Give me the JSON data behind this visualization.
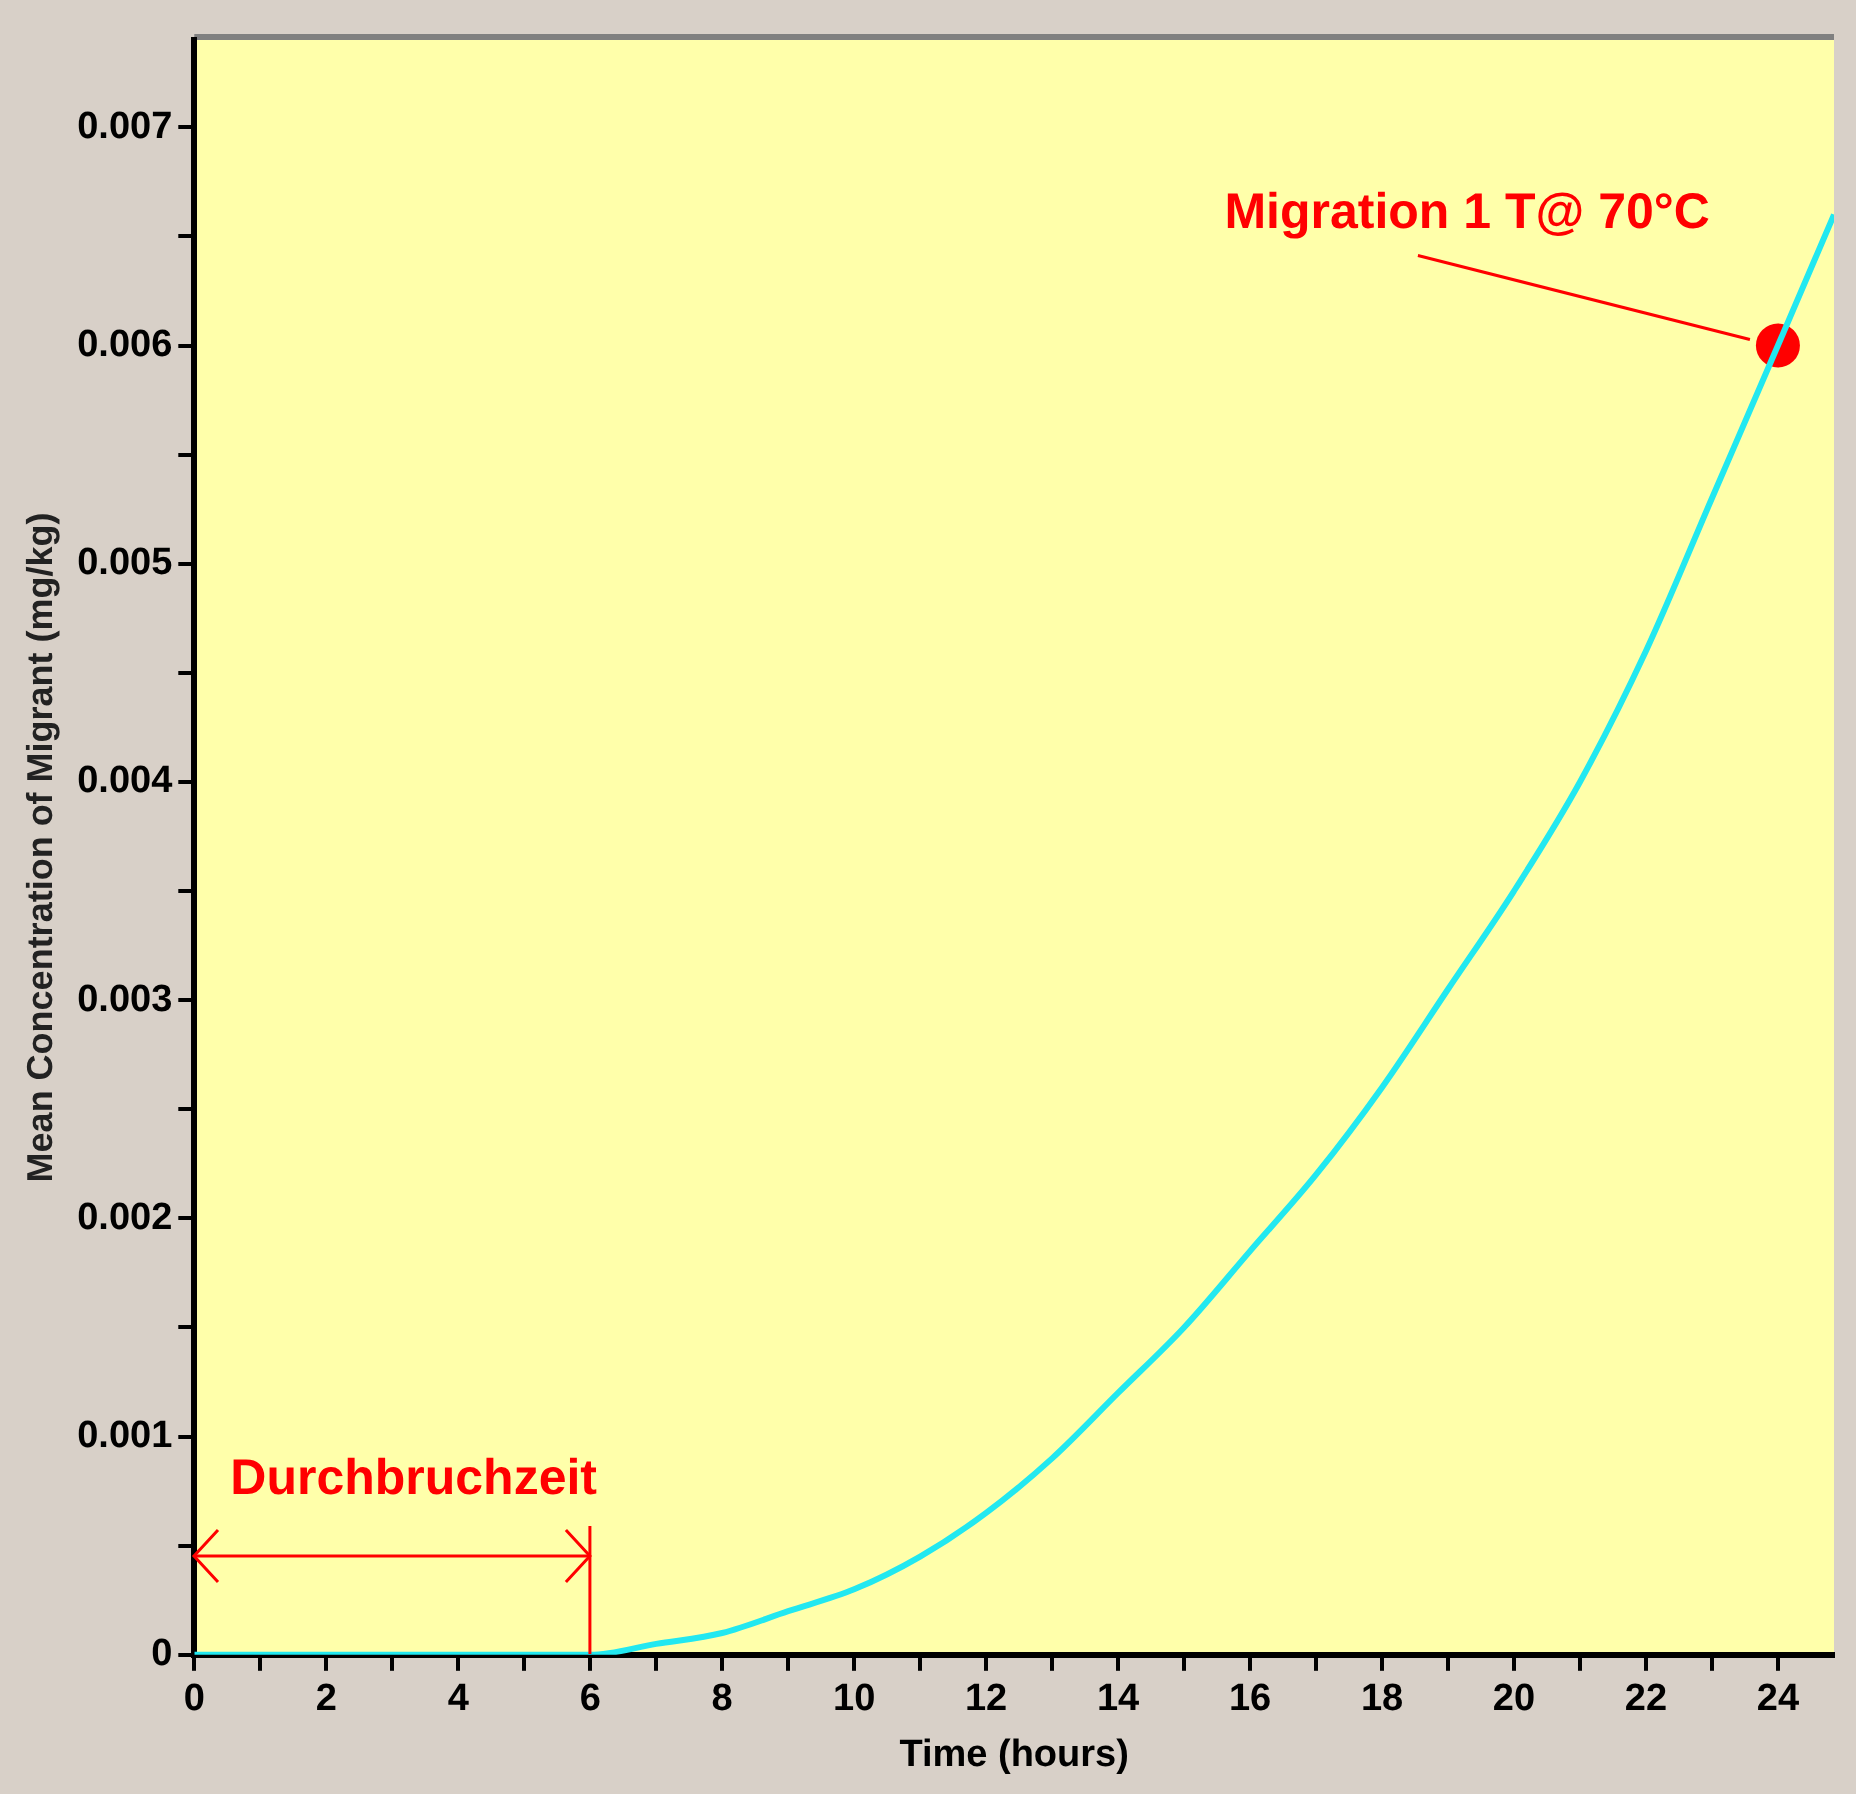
{
  "chart_data": {
    "type": "line",
    "xlabel": "Time (hours)",
    "ylabel": "Mean Concentration of Migrant (mg/kg)",
    "xlim": [
      0,
      24.85
    ],
    "ylim": [
      0,
      0.0074
    ],
    "xticks": [
      0,
      {
        "value": 1,
        "label": null
      },
      2,
      {
        "value": 3,
        "label": null
      },
      4,
      {
        "value": 5,
        "label": null
      },
      6,
      {
        "value": 7,
        "label": null
      },
      8,
      {
        "value": 9,
        "label": null
      },
      10,
      {
        "value": 11,
        "label": null
      },
      12,
      {
        "value": 13,
        "label": null
      },
      14,
      {
        "value": 15,
        "label": null
      },
      16,
      {
        "value": 17,
        "label": null
      },
      18,
      {
        "value": 19,
        "label": null
      },
      20,
      {
        "value": 21,
        "label": null
      },
      22,
      {
        "value": 23,
        "label": null
      },
      24
    ],
    "yticks": [
      0,
      {
        "value": 0.0005,
        "label": null
      },
      0.001,
      {
        "value": 0.0015,
        "label": null
      },
      0.002,
      {
        "value": 0.0025,
        "label": null
      },
      0.003,
      {
        "value": 0.0035,
        "label": null
      },
      0.004,
      {
        "value": 0.0045,
        "label": null
      },
      0.005,
      {
        "value": 0.0055,
        "label": null
      },
      0.006,
      {
        "value": 0.0065,
        "label": null
      },
      0.007
    ],
    "grid": false,
    "legend": false,
    "line_style": "solid",
    "series": [
      {
        "type": "line",
        "color": "#22e8f0",
        "marker": "none",
        "x": [
          0,
          1,
          2,
          3,
          4,
          5,
          6,
          7,
          8,
          9,
          10,
          11,
          12,
          13,
          14,
          15,
          16,
          17,
          18,
          19,
          20,
          21,
          22,
          23,
          24,
          24.85
        ],
        "values": [
          0,
          0,
          0,
          0,
          0,
          0,
          0,
          5e-05,
          0.0001,
          0.0002,
          0.0003,
          0.00045,
          0.00065,
          0.0009,
          0.0012,
          0.0015,
          0.00185,
          0.0022,
          0.0026,
          0.00305,
          0.0035,
          0.004,
          0.0046,
          0.0053,
          0.006,
          0.0066
        ]
      },
      {
        "type": "scatter",
        "color": "#ff0000",
        "marker": "circle",
        "x": [
          24
        ],
        "values": [
          0.006
        ]
      }
    ],
    "annotations": [
      {
        "text": "Durchbruchzeit",
        "x": 6,
        "y": 0
      },
      {
        "text": "Migration 1 T@ 70°C",
        "x": 24,
        "y": 0.006
      }
    ]
  }
}
